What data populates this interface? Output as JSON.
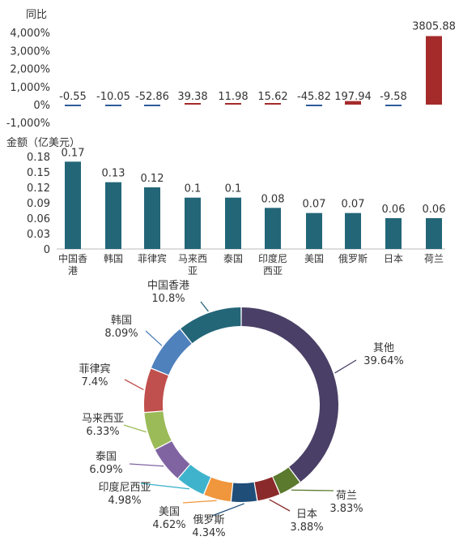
{
  "chart_data": [
    {
      "type": "bar",
      "ylabel": "同比",
      "categories": [
        "中国香港",
        "韩国",
        "菲律宾",
        "马来西亚",
        "泰国",
        "印度尼西亚",
        "美国",
        "俄罗斯",
        "日本",
        "荷兰"
      ],
      "values": [
        -0.55,
        -10.05,
        -52.86,
        39.38,
        11.98,
        15.62,
        -45.82,
        197.94,
        -9.58,
        3805.88
      ],
      "value_labels": [
        "-0.55",
        "-10.05",
        "-52.86",
        "39.38",
        "11.98",
        "15.62",
        "-45.82",
        "197.94",
        "-9.58",
        "3805.88"
      ],
      "yticks": [
        "4,000%",
        "3,000%",
        "2,000%",
        "1,000%",
        "0%",
        "-1,000%"
      ],
      "ylim": [
        -1000,
        4000
      ],
      "colors": {
        "positive": "#a52a2a",
        "negative": "#2e5b9a"
      }
    },
    {
      "type": "bar",
      "ylabel": "金额（亿美元）",
      "categories": [
        "中国香港",
        "韩国",
        "菲律宾",
        "马来西亚",
        "泰国",
        "印度尼西亚",
        "美国",
        "俄罗斯",
        "日本",
        "荷兰"
      ],
      "category_lines": [
        [
          "中国香",
          "港"
        ],
        [
          "韩国"
        ],
        [
          "菲律宾"
        ],
        [
          "马来西",
          "亚"
        ],
        [
          "泰国"
        ],
        [
          "印度尼",
          "西亚"
        ],
        [
          "美国"
        ],
        [
          "俄罗斯"
        ],
        [
          "日本"
        ],
        [
          "荷兰"
        ]
      ],
      "values": [
        0.17,
        0.13,
        0.12,
        0.1,
        0.1,
        0.08,
        0.07,
        0.07,
        0.06,
        0.06
      ],
      "value_labels": [
        "0.17",
        "0.13",
        "0.12",
        "0.1",
        "0.1",
        "0.08",
        "0.07",
        "0.07",
        "0.06",
        "0.06"
      ],
      "yticks": [
        "0.18",
        "0.15",
        "0.12",
        "0.09",
        "0.06",
        "0.03",
        "0"
      ],
      "ylim": [
        0,
        0.18
      ],
      "color": "#236678"
    },
    {
      "type": "pie",
      "donut": true,
      "slices": [
        {
          "label": "其他",
          "value": 39.64,
          "pct": "39.64%",
          "color": "#4a3f66"
        },
        {
          "label": "荷兰",
          "value": 3.83,
          "pct": "3.83%",
          "color": "#5c7a2e"
        },
        {
          "label": "日本",
          "value": 3.88,
          "pct": "3.88%",
          "color": "#8b2a2a"
        },
        {
          "label": "俄罗斯",
          "value": 4.34,
          "pct": "4.34%",
          "color": "#1f4e79"
        },
        {
          "label": "美国",
          "value": 4.62,
          "pct": "4.62%",
          "color": "#f0963c"
        },
        {
          "label": "印度尼西亚",
          "value": 4.98,
          "pct": "4.98%",
          "color": "#40b3cc"
        },
        {
          "label": "泰国",
          "value": 6.09,
          "pct": "6.09%",
          "color": "#8064a2"
        },
        {
          "label": "马来西亚",
          "value": 6.33,
          "pct": "6.33%",
          "color": "#9bbb59"
        },
        {
          "label": "菲律宾",
          "value": 7.4,
          "pct": "7.4%",
          "color": "#c0504d"
        },
        {
          "label": "韩国",
          "value": 8.09,
          "pct": "8.09%",
          "color": "#4f81bd"
        },
        {
          "label": "中国香港",
          "value": 10.8,
          "pct": "10.8%",
          "color": "#236678"
        }
      ]
    }
  ]
}
